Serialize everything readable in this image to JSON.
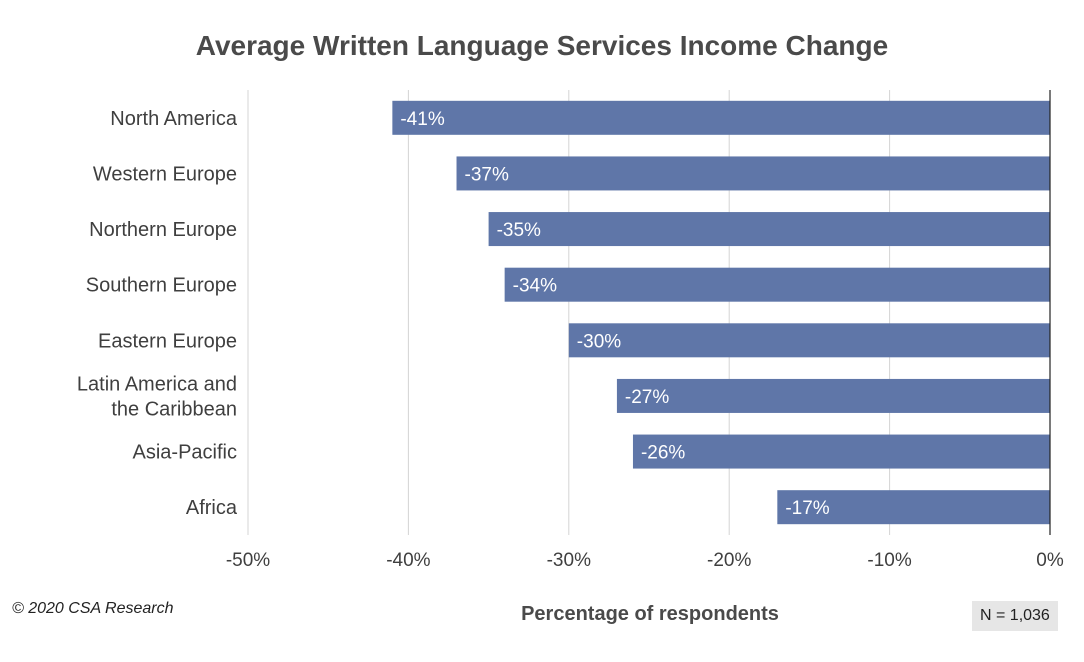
{
  "chart_data": {
    "type": "bar",
    "orientation": "horizontal",
    "title": "Average Written Language Services Income Change",
    "xlabel": "Percentage of respondents",
    "ylabel": "",
    "categories": [
      [
        "North America"
      ],
      [
        "Western Europe"
      ],
      [
        "Northern Europe"
      ],
      [
        "Southern Europe"
      ],
      [
        "Eastern Europe"
      ],
      [
        "Latin America and",
        "the Caribbean"
      ],
      [
        "Asia-Pacific"
      ],
      [
        "Africa"
      ]
    ],
    "values": [
      -41,
      -37,
      -35,
      -34,
      -30,
      -27,
      -26,
      -17
    ],
    "data_labels": [
      "-41%",
      "-37%",
      "-35%",
      "-34%",
      "-30%",
      "-27%",
      "-26%",
      "-17%"
    ],
    "xlim": [
      -50,
      0
    ],
    "x_ticks": [
      -50,
      -40,
      -30,
      -20,
      -10,
      0
    ],
    "x_tick_labels": [
      "-50%",
      "-40%",
      "-30%",
      "-20%",
      "-10%",
      "0%"
    ],
    "grid": true,
    "bar_color": "#5f76a8"
  },
  "footer": {
    "copyright": "© 2020 CSA Research",
    "sample_size": "N = 1,036"
  }
}
